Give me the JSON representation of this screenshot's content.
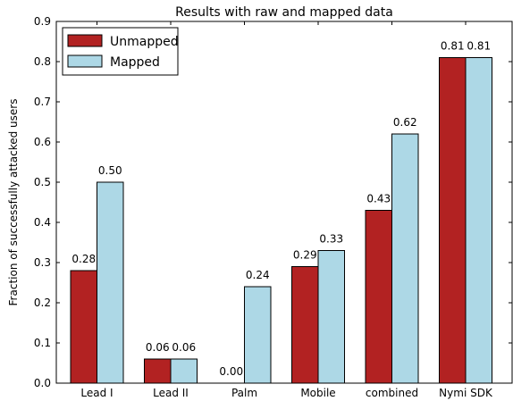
{
  "chart_data": {
    "type": "bar",
    "title": "Results with raw and mapped data",
    "xlabel": "",
    "ylabel": "Fraction of successfully attacked users",
    "ylim": [
      0,
      0.9
    ],
    "yticks": [
      "0.0",
      "0.1",
      "0.2",
      "0.3",
      "0.4",
      "0.5",
      "0.6",
      "0.7",
      "0.8",
      "0.9"
    ],
    "categories": [
      "Lead I",
      "Lead II",
      "Palm",
      "Mobile",
      "combined",
      "Nymi SDK"
    ],
    "series": [
      {
        "name": "Unmapped",
        "color": "#b22222",
        "values": [
          0.28,
          0.06,
          0.0,
          0.29,
          0.43,
          0.81
        ],
        "labels": [
          "0.28",
          "0.06",
          "0.00",
          "0.29",
          "0.43",
          "0.81"
        ]
      },
      {
        "name": "Mapped",
        "color": "#add8e6",
        "values": [
          0.5,
          0.06,
          0.24,
          0.33,
          0.62,
          0.81
        ],
        "labels": [
          "0.50",
          "0.06",
          "0.24",
          "0.33",
          "0.62",
          "0.81"
        ]
      }
    ],
    "legend_position": "top-left",
    "grid": false
  }
}
